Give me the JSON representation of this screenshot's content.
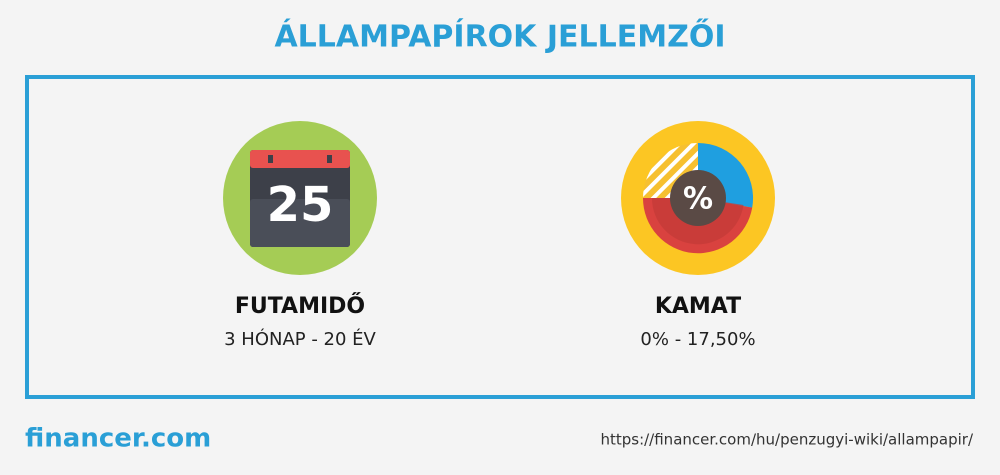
{
  "title": "ÁLLAMPAPÍROK JELLEMZŐI",
  "items": [
    {
      "icon_text": "25",
      "label": "FUTAMIDŐ",
      "value": "3 HÓNAP - 20 ÉV"
    },
    {
      "icon_text": "%",
      "label": "KAMAT",
      "value": "0% - 17,50%"
    }
  ],
  "footer": {
    "logo": "financer.com",
    "url": "https://financer.com/hu/penzugyi-wiki/allampapir/"
  }
}
